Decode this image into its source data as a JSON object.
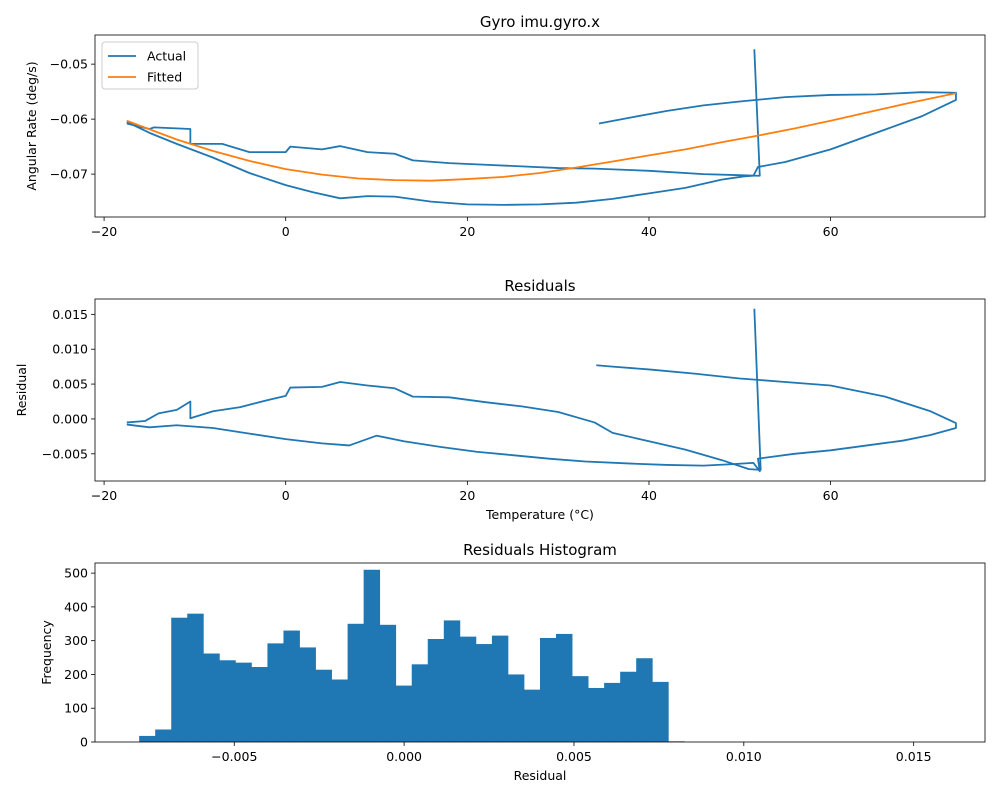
{
  "chart_data": [
    {
      "type": "line",
      "title": "Gyro imu.gyro.x",
      "xlabel": "",
      "ylabel": "Angular Rate (deg/s)",
      "xlim": [
        -21,
        77
      ],
      "ylim": [
        -0.0778,
        -0.0447
      ],
      "xticks": [
        -20,
        0,
        20,
        40,
        60
      ],
      "yticks": [
        -0.07,
        -0.06,
        -0.05
      ],
      "grid": false,
      "legend": "top-left",
      "series": [
        {
          "name": "Actual",
          "color": "#1f77b4",
          "points": [
            [
              -17.5,
              -0.0605
            ],
            [
              -15,
              -0.0625
            ],
            [
              -12,
              -0.0645
            ],
            [
              -8,
              -0.067
            ],
            [
              -4,
              -0.0698
            ],
            [
              0,
              -0.072
            ],
            [
              3,
              -0.0733
            ],
            [
              6,
              -0.0744
            ],
            [
              9,
              -0.074
            ],
            [
              12,
              -0.0741
            ],
            [
              16,
              -0.075
            ],
            [
              20,
              -0.0755
            ],
            [
              24,
              -0.0756
            ],
            [
              28,
              -0.0755
            ],
            [
              32,
              -0.0752
            ],
            [
              36,
              -0.0745
            ],
            [
              40,
              -0.0735
            ],
            [
              44,
              -0.0725
            ],
            [
              48,
              -0.071
            ],
            [
              50.5,
              -0.0704
            ],
            [
              51.5,
              -0.0703
            ],
            [
              52,
              -0.0687
            ],
            [
              55,
              -0.0678
            ],
            [
              60,
              -0.0655
            ],
            [
              65,
              -0.0625
            ],
            [
              70,
              -0.0595
            ],
            [
              73.8,
              -0.0565
            ],
            [
              73.8,
              -0.0552
            ],
            [
              70,
              -0.0551
            ],
            [
              65,
              -0.0555
            ],
            [
              60,
              -0.0556
            ],
            [
              55,
              -0.056
            ],
            [
              50,
              -0.0568
            ],
            [
              46,
              -0.0575
            ],
            [
              42,
              -0.0585
            ],
            [
              38,
              -0.0597
            ],
            [
              34.5,
              -0.0608
            ]
          ]
        },
        {
          "name": "",
          "color": "#1f77b4",
          "points": [
            [
              -17.5,
              -0.0608
            ],
            [
              -15,
              -0.0618
            ],
            [
              -14.5,
              -0.0615
            ],
            [
              -10.5,
              -0.0618
            ],
            [
              -10.5,
              -0.0645
            ],
            [
              -7,
              -0.0645
            ],
            [
              -4,
              -0.066
            ],
            [
              0,
              -0.066
            ],
            [
              0.5,
              -0.065
            ],
            [
              4,
              -0.0655
            ],
            [
              6,
              -0.0649
            ],
            [
              9,
              -0.066
            ],
            [
              12,
              -0.0663
            ],
            [
              14,
              -0.0675
            ],
            [
              18,
              -0.068
            ],
            [
              22,
              -0.0683
            ],
            [
              26,
              -0.0686
            ],
            [
              30,
              -0.0689
            ],
            [
              34,
              -0.069
            ],
            [
              40,
              -0.0694
            ],
            [
              46,
              -0.07
            ],
            [
              50,
              -0.0702
            ],
            [
              52,
              -0.0703
            ],
            [
              52.2,
              -0.0703
            ],
            [
              51.6,
              -0.0473
            ]
          ]
        },
        {
          "name": "Fitted",
          "color": "#ff7f0e",
          "points": [
            [
              -17.5,
              -0.0603
            ],
            [
              -12,
              -0.0637
            ],
            [
              -8,
              -0.0658
            ],
            [
              -4,
              -0.0676
            ],
            [
              0,
              -0.0691
            ],
            [
              4,
              -0.0701
            ],
            [
              8,
              -0.0708
            ],
            [
              12,
              -0.0711
            ],
            [
              16,
              -0.0712
            ],
            [
              20,
              -0.0709
            ],
            [
              24,
              -0.0705
            ],
            [
              28,
              -0.0698
            ],
            [
              32,
              -0.0688
            ],
            [
              36,
              -0.0677
            ],
            [
              40,
              -0.0666
            ],
            [
              44,
              -0.0655
            ],
            [
              48,
              -0.0642
            ],
            [
              52,
              -0.063
            ],
            [
              56,
              -0.0617
            ],
            [
              60,
              -0.0603
            ],
            [
              64,
              -0.0588
            ],
            [
              68,
              -0.0573
            ],
            [
              72,
              -0.0559
            ],
            [
              73.8,
              -0.0553
            ]
          ]
        }
      ]
    },
    {
      "type": "line",
      "title": "Residuals",
      "xlabel": "Temperature (°C)",
      "ylabel": "Residual",
      "xlim": [
        -21,
        77
      ],
      "ylim": [
        -0.0089,
        0.0172
      ],
      "xticks": [
        -20,
        0,
        20,
        40,
        60
      ],
      "yticks": [
        -0.005,
        0.0,
        0.005,
        0.01,
        0.015
      ],
      "grid": false,
      "series": [
        {
          "name": "",
          "color": "#1f77b4",
          "points": [
            [
              -17.5,
              -0.0008
            ],
            [
              -15,
              -0.0012
            ],
            [
              -12,
              -0.0009
            ],
            [
              -8,
              -0.0013
            ],
            [
              -4,
              -0.0021
            ],
            [
              0,
              -0.0029
            ],
            [
              4,
              -0.0035
            ],
            [
              7,
              -0.0038
            ],
            [
              10,
              -0.0024
            ],
            [
              13,
              -0.0032
            ],
            [
              17,
              -0.004
            ],
            [
              21,
              -0.0047
            ],
            [
              25,
              -0.0052
            ],
            [
              29,
              -0.0057
            ],
            [
              33,
              -0.0061
            ],
            [
              38,
              -0.0064
            ],
            [
              42,
              -0.0066
            ],
            [
              46,
              -0.0067
            ],
            [
              49,
              -0.0065
            ],
            [
              51.5,
              -0.0063
            ],
            [
              52.2,
              -0.0075
            ],
            [
              52,
              -0.0057
            ],
            [
              56,
              -0.005
            ],
            [
              60,
              -0.0045
            ],
            [
              64,
              -0.0038
            ],
            [
              68,
              -0.0031
            ],
            [
              71,
              -0.0023
            ],
            [
              73.8,
              -0.0013
            ],
            [
              73.8,
              -0.0006
            ],
            [
              71,
              0.0011
            ],
            [
              66,
              0.0032
            ],
            [
              60,
              0.0048
            ],
            [
              55,
              0.0053
            ],
            [
              50,
              0.0058
            ],
            [
              45,
              0.0065
            ],
            [
              40,
              0.0071
            ],
            [
              36,
              0.0075
            ],
            [
              34.2,
              0.0077
            ]
          ]
        },
        {
          "name": "",
          "color": "#1f77b4",
          "points": [
            [
              -17.5,
              -0.0005
            ],
            [
              -15.5,
              -0.0003
            ],
            [
              -14,
              0.0008
            ],
            [
              -12,
              0.0013
            ],
            [
              -10.5,
              0.0025
            ],
            [
              -10.5,
              0.0001
            ],
            [
              -8,
              0.0011
            ],
            [
              -5,
              0.0017
            ],
            [
              -2,
              0.0027
            ],
            [
              0,
              0.0033
            ],
            [
              0.5,
              0.0045
            ],
            [
              4,
              0.0046
            ],
            [
              6,
              0.0053
            ],
            [
              9,
              0.0048
            ],
            [
              12,
              0.0044
            ],
            [
              14,
              0.0032
            ],
            [
              18,
              0.0031
            ],
            [
              22,
              0.0024
            ],
            [
              26,
              0.0018
            ],
            [
              30,
              0.001
            ],
            [
              34,
              -0.0005
            ],
            [
              36,
              -0.002
            ],
            [
              40,
              -0.0032
            ],
            [
              44,
              -0.0044
            ],
            [
              48,
              -0.0059
            ],
            [
              51,
              -0.0072
            ],
            [
              52.3,
              -0.0073
            ],
            [
              51.6,
              0.0158
            ]
          ]
        }
      ]
    },
    {
      "type": "bar",
      "title": "Residuals Histogram",
      "xlabel": "Residual",
      "ylabel": "Frequency",
      "xlim": [
        -0.0091,
        0.0171
      ],
      "ylim": [
        0,
        530
      ],
      "xticks": [
        -0.005,
        0.0,
        0.005,
        0.01,
        0.015
      ],
      "yticks": [
        0,
        100,
        200,
        300,
        400,
        500
      ],
      "grid": false,
      "color": "#1f77b4",
      "bin_start": -0.0078,
      "bin_width": 0.000472,
      "values": [
        18,
        37,
        368,
        380,
        262,
        242,
        235,
        222,
        292,
        330,
        280,
        214,
        185,
        350,
        510,
        347,
        167,
        230,
        305,
        360,
        312,
        290,
        315,
        200,
        155,
        308,
        320,
        195,
        160,
        175,
        208,
        248,
        178,
        2,
        0,
        0,
        0,
        0,
        0,
        0,
        0,
        0,
        0,
        0,
        0,
        0,
        0,
        0,
        0,
        0
      ]
    }
  ],
  "axis_tick_labels": {
    "top_x": [
      "−20",
      "0",
      "20",
      "40",
      "60"
    ],
    "top_y": [
      "−0.07",
      "−0.06",
      "−0.05"
    ],
    "mid_x": [
      "−20",
      "0",
      "20",
      "40",
      "60"
    ],
    "mid_y": [
      "−0.005",
      "0.000",
      "0.005",
      "0.010",
      "0.015"
    ],
    "bot_x": [
      "−0.005",
      "0.000",
      "0.005",
      "0.010",
      "0.015"
    ],
    "bot_y": [
      "0",
      "100",
      "200",
      "300",
      "400",
      "500"
    ]
  }
}
